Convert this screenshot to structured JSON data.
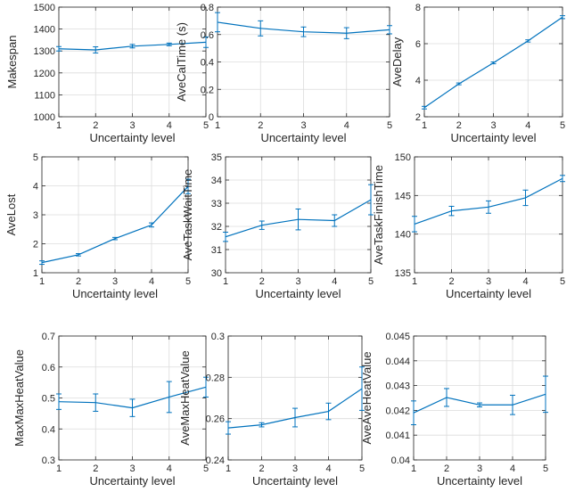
{
  "colors": {
    "series": "#0072BD",
    "grid": "#dcdcdc",
    "axis": "#262626"
  },
  "chart_data": [
    {
      "type": "line",
      "xlabel": "Uncertainty level",
      "ylabel": "Makespan",
      "x": [
        1,
        2,
        3,
        4,
        5
      ],
      "xticks": [
        "1",
        "2",
        "3",
        "4",
        "5"
      ],
      "y": [
        1310,
        1305,
        1322,
        1330,
        1340
      ],
      "err": [
        10,
        14,
        8,
        6,
        24
      ],
      "ylim": [
        1000,
        1500
      ],
      "yticks": [
        "1000",
        "1100",
        "1200",
        "1300",
        "1400",
        "1500"
      ],
      "grid": true
    },
    {
      "type": "line",
      "xlabel": "Uncertainty level",
      "ylabel": "AveCalTime (s)",
      "x": [
        1,
        2,
        3,
        4,
        5
      ],
      "xticks": [
        "1",
        "2",
        "3",
        "4",
        "5"
      ],
      "y": [
        0.69,
        0.645,
        0.62,
        0.61,
        0.635
      ],
      "err": [
        0.07,
        0.055,
        0.035,
        0.04,
        0.03
      ],
      "ylim": [
        0,
        0.8
      ],
      "yticks": [
        "0",
        "0.2",
        "0.4",
        "0.6",
        "0.8"
      ],
      "grid": true
    },
    {
      "type": "line",
      "xlabel": "Uncertainty level",
      "ylabel": "AveDelay",
      "x": [
        1,
        2,
        3,
        4,
        5
      ],
      "xticks": [
        "1",
        "2",
        "3",
        "4",
        "5"
      ],
      "y": [
        2.5,
        3.8,
        4.95,
        6.15,
        7.45
      ],
      "err": [
        0.07,
        0.05,
        0.05,
        0.06,
        0.08
      ],
      "ylim": [
        2,
        8
      ],
      "yticks": [
        "2",
        "4",
        "6",
        "8"
      ],
      "grid": true
    },
    {
      "type": "line",
      "xlabel": "Uncertainty level",
      "ylabel": "AveLost",
      "x": [
        1,
        2,
        3,
        4,
        5
      ],
      "xticks": [
        "1",
        "2",
        "3",
        "4",
        "5"
      ],
      "y": [
        1.35,
        1.62,
        2.18,
        2.65,
        3.98
      ],
      "err": [
        0.06,
        0.04,
        0.04,
        0.07,
        0.25
      ],
      "ylim": [
        1,
        5
      ],
      "yticks": [
        "1",
        "2",
        "3",
        "4",
        "5"
      ],
      "grid": true
    },
    {
      "type": "line",
      "xlabel": "Uncertainty level",
      "ylabel": "AveTaskWaitTime",
      "x": [
        1,
        2,
        3,
        4,
        5
      ],
      "xticks": [
        "1",
        "2",
        "3",
        "4",
        "5"
      ],
      "y": [
        31.55,
        32.05,
        32.3,
        32.25,
        33.15
      ],
      "err": [
        0.2,
        0.18,
        0.45,
        0.25,
        0.65
      ],
      "ylim": [
        30,
        35
      ],
      "yticks": [
        "30",
        "31",
        "32",
        "33",
        "34",
        "35"
      ],
      "grid": true
    },
    {
      "type": "line",
      "xlabel": "Uncertainty level",
      "ylabel": "AveTaskFinishTime",
      "x": [
        1,
        2,
        3,
        4,
        5
      ],
      "xticks": [
        "1",
        "2",
        "3",
        "4",
        "5"
      ],
      "y": [
        141.3,
        143.0,
        143.5,
        144.7,
        147.2
      ],
      "err": [
        1.0,
        0.6,
        0.8,
        1.0,
        0.4
      ],
      "ylim": [
        135,
        150
      ],
      "yticks": [
        "135",
        "140",
        "145",
        "150"
      ],
      "grid": true
    },
    {
      "type": "line",
      "xlabel": "Uncertainty level",
      "ylabel": "MaxMaxHeatValue",
      "x": [
        1,
        2,
        3,
        4,
        5
      ],
      "xticks": [
        "1",
        "2",
        "3",
        "4",
        "5"
      ],
      "y": [
        0.488,
        0.485,
        0.468,
        0.503,
        0.535
      ],
      "err": [
        0.025,
        0.028,
        0.028,
        0.05,
        0.032
      ],
      "ylim": [
        0.3,
        0.7
      ],
      "yticks": [
        "0.3",
        "0.4",
        "0.5",
        "0.6",
        "0.7"
      ],
      "grid": true
    },
    {
      "type": "line",
      "xlabel": "Uncertainty level",
      "ylabel": "AveMaxHeatValue",
      "x": [
        1,
        2,
        3,
        4,
        5
      ],
      "xticks": [
        "1",
        "2",
        "3",
        "4",
        "5"
      ],
      "y": [
        0.2555,
        0.257,
        0.2605,
        0.2635,
        0.2745
      ],
      "err": [
        0.003,
        0.001,
        0.0045,
        0.004,
        0.0105
      ],
      "ylim": [
        0.24,
        0.3
      ],
      "yticks": [
        "0.24",
        "0.26",
        "0.28",
        "0.3"
      ],
      "grid": true
    },
    {
      "type": "line",
      "xlabel": "Uncertainty level",
      "ylabel": "AveAveHeatValue",
      "x": [
        1,
        2,
        3,
        4,
        5
      ],
      "xticks": [
        "1",
        "2",
        "3",
        "4",
        "5"
      ],
      "y": [
        0.0419,
        0.04252,
        0.04222,
        0.04222,
        0.04265
      ],
      "err": [
        0.00048,
        0.00036,
        8e-05,
        0.00039,
        0.00073
      ],
      "ylim": [
        0.04,
        0.045
      ],
      "yticks": [
        "0.04",
        "0.041",
        "0.042",
        "0.043",
        "0.044",
        "0.045"
      ],
      "grid": true
    }
  ]
}
